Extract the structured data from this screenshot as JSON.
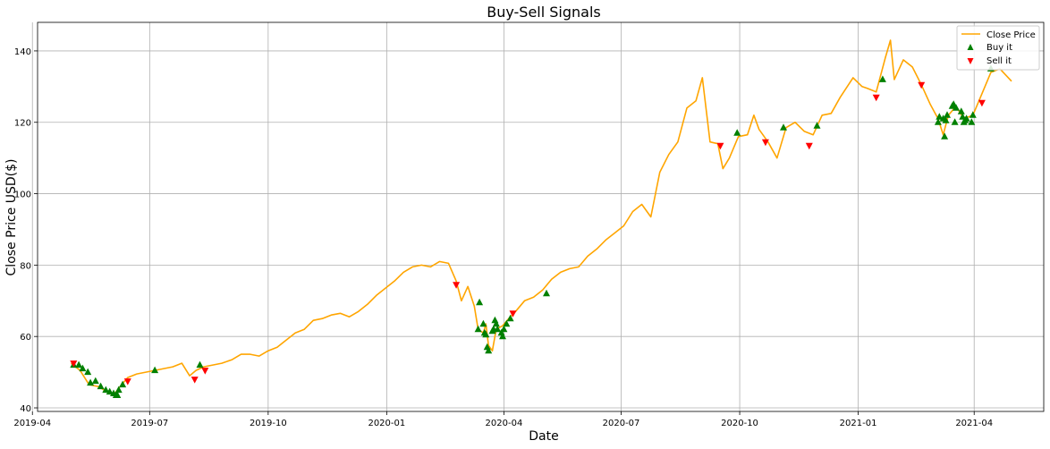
{
  "chart_data": {
    "type": "line",
    "title": "Buy-Sell Signals",
    "xlabel": "Date",
    "ylabel": "Close Price USD($)",
    "xlim": [
      "2019-04-05",
      "2021-05-25"
    ],
    "ylim": [
      39,
      148
    ],
    "grid": true,
    "legend_position": "top-right",
    "x_ticks": [
      "2019-04",
      "2019-07",
      "2019-10",
      "2020-01",
      "2020-04",
      "2020-07",
      "2020-10",
      "2021-01",
      "2021-04"
    ],
    "x_tick_dates": [
      "2019-04-01",
      "2019-07-01",
      "2019-10-01",
      "2020-01-01",
      "2020-04-01",
      "2020-07-01",
      "2020-10-01",
      "2021-01-01",
      "2021-04-01"
    ],
    "y_ticks": [
      40,
      60,
      80,
      100,
      120,
      140
    ],
    "series": [
      {
        "name": "Close Price",
        "kind": "line",
        "color": "#ffa500",
        "x": [
          "2019-05-01",
          "2019-05-08",
          "2019-05-15",
          "2019-05-22",
          "2019-05-29",
          "2019-06-03",
          "2019-06-07",
          "2019-06-14",
          "2019-06-21",
          "2019-06-28",
          "2019-07-05",
          "2019-07-12",
          "2019-07-19",
          "2019-07-26",
          "2019-08-01",
          "2019-08-06",
          "2019-08-12",
          "2019-08-19",
          "2019-08-26",
          "2019-09-03",
          "2019-09-10",
          "2019-09-17",
          "2019-09-24",
          "2019-10-01",
          "2019-10-08",
          "2019-10-15",
          "2019-10-22",
          "2019-10-29",
          "2019-11-05",
          "2019-11-12",
          "2019-11-19",
          "2019-11-26",
          "2019-12-03",
          "2019-12-10",
          "2019-12-17",
          "2019-12-24",
          "2019-12-31",
          "2020-01-07",
          "2020-01-14",
          "2020-01-21",
          "2020-01-28",
          "2020-02-04",
          "2020-02-11",
          "2020-02-18",
          "2020-02-24",
          "2020-02-28",
          "2020-03-04",
          "2020-03-09",
          "2020-03-12",
          "2020-03-16",
          "2020-03-18",
          "2020-03-20",
          "2020-03-23",
          "2020-03-26",
          "2020-03-31",
          "2020-04-06",
          "2020-04-10",
          "2020-04-17",
          "2020-04-24",
          "2020-05-01",
          "2020-05-08",
          "2020-05-15",
          "2020-05-22",
          "2020-05-29",
          "2020-06-05",
          "2020-06-12",
          "2020-06-19",
          "2020-06-26",
          "2020-07-03",
          "2020-07-10",
          "2020-07-17",
          "2020-07-24",
          "2020-07-31",
          "2020-08-07",
          "2020-08-14",
          "2020-08-21",
          "2020-08-28",
          "2020-09-02",
          "2020-09-08",
          "2020-09-14",
          "2020-09-18",
          "2020-09-23",
          "2020-09-30",
          "2020-10-07",
          "2020-10-12",
          "2020-10-16",
          "2020-10-23",
          "2020-10-30",
          "2020-11-06",
          "2020-11-13",
          "2020-11-20",
          "2020-11-27",
          "2020-12-04",
          "2020-12-11",
          "2020-12-18",
          "2020-12-28",
          "2021-01-04",
          "2021-01-08",
          "2021-01-15",
          "2021-01-22",
          "2021-01-26",
          "2021-01-29",
          "2021-02-05",
          "2021-02-12",
          "2021-02-19",
          "2021-02-26",
          "2021-03-04",
          "2021-03-08",
          "2021-03-12",
          "2021-03-18",
          "2021-03-24",
          "2021-03-31",
          "2021-04-07",
          "2021-04-14",
          "2021-04-21",
          "2021-04-30"
        ],
        "y": [
          52.5,
          50.5,
          46.5,
          46.0,
          44.5,
          43.5,
          45.5,
          48.5,
          49.5,
          50.0,
          50.5,
          51.0,
          51.5,
          52.5,
          49.0,
          50.5,
          51.5,
          52.0,
          52.5,
          53.5,
          55.0,
          55.0,
          54.5,
          56.0,
          57.0,
          59.0,
          61.0,
          62.0,
          64.5,
          65.0,
          66.0,
          66.5,
          65.5,
          67.0,
          69.0,
          71.5,
          73.5,
          75.5,
          78.0,
          79.5,
          80.0,
          79.5,
          81.0,
          80.5,
          75.5,
          70.0,
          74.0,
          68.5,
          62.0,
          61.0,
          63.5,
          57.5,
          56.0,
          62.0,
          63.0,
          65.5,
          67.0,
          70.0,
          71.0,
          73.0,
          76.0,
          78.0,
          79.0,
          79.5,
          82.5,
          84.5,
          87.0,
          89.0,
          91.0,
          95.0,
          97.0,
          93.5,
          106.0,
          111.0,
          114.5,
          124.0,
          126.0,
          132.5,
          114.5,
          114.0,
          107.0,
          110.0,
          116.0,
          116.5,
          122.0,
          118.0,
          114.5,
          110.0,
          118.5,
          120.0,
          117.5,
          116.5,
          122.0,
          122.5,
          127.0,
          132.5,
          130.0,
          129.5,
          128.5,
          138.0,
          143.0,
          132.0,
          137.5,
          135.5,
          130.5,
          125.0,
          121.0,
          116.5,
          122.0,
          124.5,
          121.0,
          122.0,
          128.0,
          134.0,
          135.0,
          131.5
        ]
      },
      {
        "name": "Buy it",
        "kind": "marker",
        "marker": "triangle-up",
        "color": "#008000",
        "x": [
          "2019-05-03",
          "2019-05-07",
          "2019-05-10",
          "2019-05-14",
          "2019-05-16",
          "2019-05-20",
          "2019-05-24",
          "2019-05-28",
          "2019-05-31",
          "2019-06-03",
          "2019-06-05",
          "2019-06-06",
          "2019-06-07",
          "2019-06-10",
          "2019-07-05",
          "2019-08-09",
          "2020-03-12",
          "2020-03-13",
          "2020-03-16",
          "2020-03-17",
          "2020-03-18",
          "2020-03-19",
          "2020-03-20",
          "2020-03-23",
          "2020-03-24",
          "2020-03-25",
          "2020-03-26",
          "2020-03-27",
          "2020-03-30",
          "2020-03-31",
          "2020-04-01",
          "2020-04-03",
          "2020-04-06",
          "2020-05-04",
          "2020-09-29",
          "2020-11-04",
          "2020-11-30",
          "2021-01-20",
          "2021-03-04",
          "2021-03-05",
          "2021-03-08",
          "2021-03-09",
          "2021-03-10",
          "2021-03-11",
          "2021-03-15",
          "2021-03-16",
          "2021-03-17",
          "2021-03-18",
          "2021-03-22",
          "2021-03-23",
          "2021-03-24",
          "2021-03-25",
          "2021-03-26",
          "2021-03-30",
          "2021-03-31",
          "2021-04-14"
        ],
        "y": [
          52.0,
          52.0,
          51.0,
          50.0,
          47.0,
          47.5,
          46.0,
          45.0,
          44.5,
          44.0,
          43.5,
          43.5,
          45.0,
          46.5,
          50.5,
          52.0,
          62.0,
          69.5,
          63.5,
          61.0,
          60.5,
          57.0,
          56.0,
          61.5,
          62.0,
          64.5,
          63.5,
          62.0,
          61.0,
          60.0,
          62.0,
          63.5,
          65.0,
          72.0,
          117.0,
          118.5,
          119.0,
          132.0,
          120.0,
          121.5,
          121.0,
          116.0,
          120.5,
          122.0,
          124.5,
          125.0,
          120.0,
          124.0,
          123.0,
          121.5,
          120.0,
          120.5,
          121.0,
          120.0,
          122.0,
          135.0
        ]
      },
      {
        "name": "Sell it",
        "kind": "marker",
        "marker": "triangle-down",
        "color": "#ff0000",
        "x": [
          "2019-05-03",
          "2019-06-14",
          "2019-08-05",
          "2019-08-13",
          "2020-02-24",
          "2020-04-08",
          "2020-09-16",
          "2020-10-21",
          "2020-11-24",
          "2021-01-15",
          "2021-02-19",
          "2021-04-07"
        ],
        "y": [
          52.5,
          47.5,
          48.0,
          50.5,
          74.5,
          66.5,
          113.5,
          114.5,
          113.5,
          127.0,
          130.5,
          125.5
        ]
      }
    ]
  }
}
